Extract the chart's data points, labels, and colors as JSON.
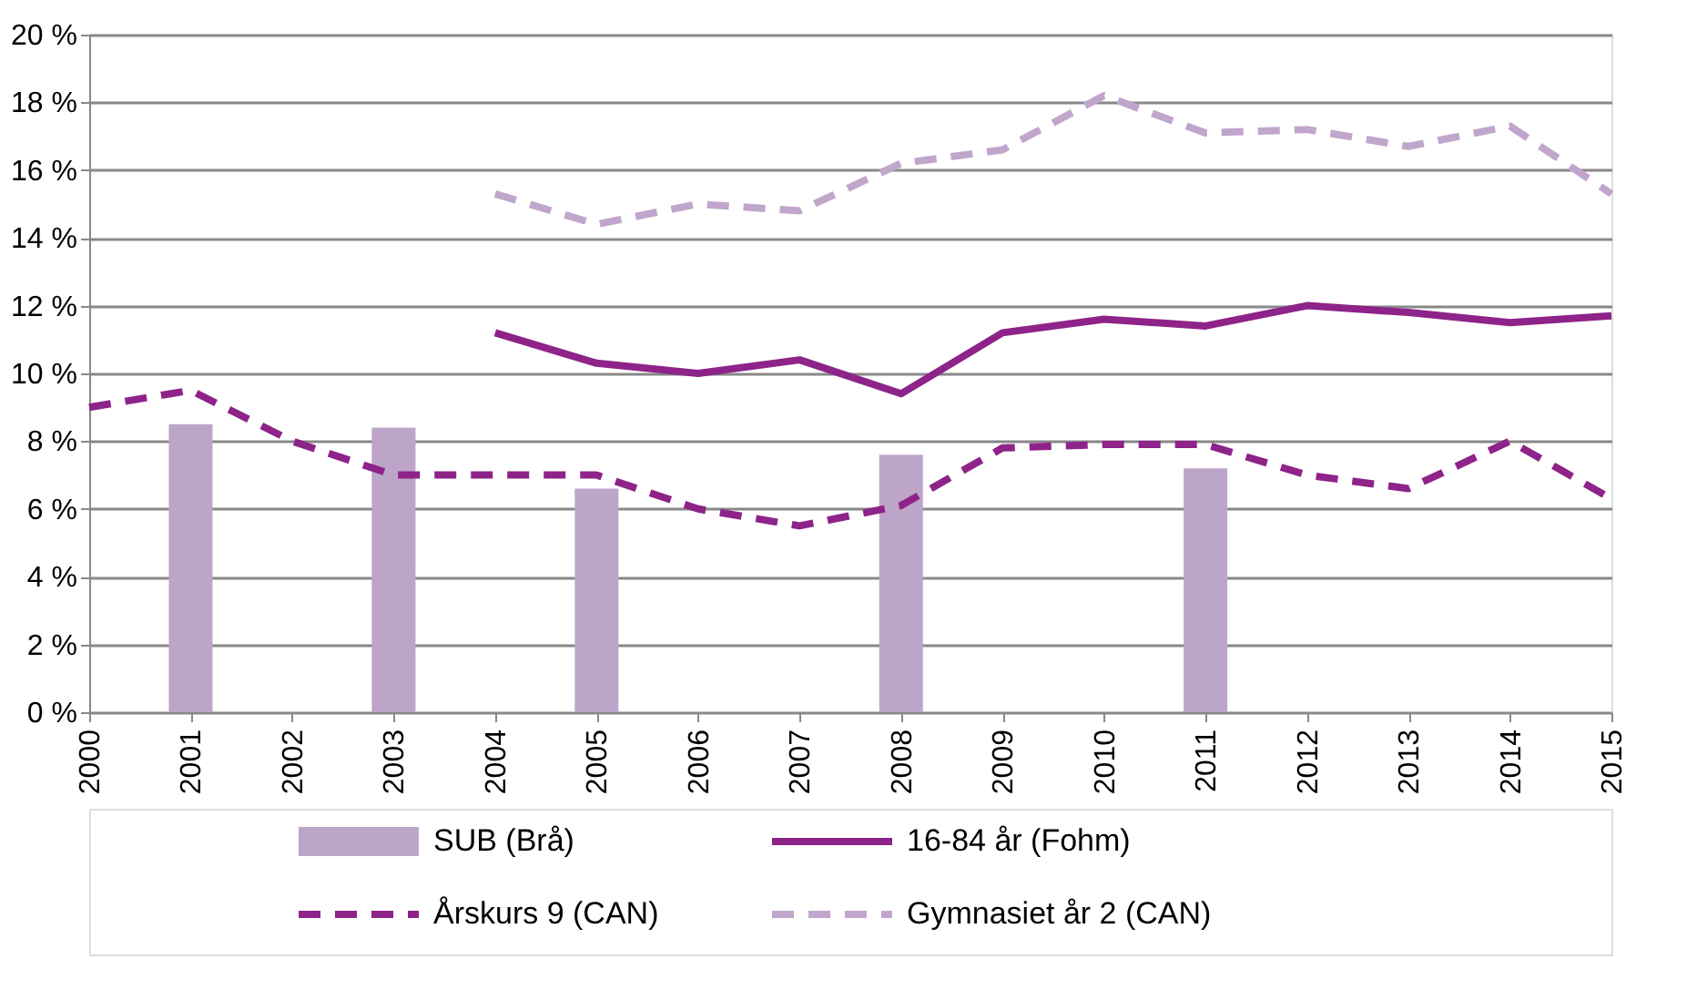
{
  "chart_data": {
    "type": "line",
    "categories": [
      "2000",
      "2001",
      "2002",
      "2003",
      "2004",
      "2005",
      "2006",
      "2007",
      "2008",
      "2009",
      "2010",
      "2011",
      "2012",
      "2013",
      "2014",
      "2015"
    ],
    "series": [
      {
        "name": "SUB (Brå)",
        "type": "bar",
        "color": "#bda5c9",
        "values": [
          null,
          8.5,
          null,
          8.4,
          null,
          6.6,
          null,
          null,
          7.6,
          null,
          null,
          7.2,
          null,
          null,
          null,
          null
        ]
      },
      {
        "name": "16-84 år (Fohm)",
        "line_style": "solid",
        "color": "#8e2389",
        "values": [
          null,
          null,
          null,
          null,
          11.2,
          10.3,
          10.0,
          10.4,
          9.4,
          11.2,
          11.6,
          11.4,
          12.0,
          11.8,
          11.5,
          11.7
        ]
      },
      {
        "name": "Årskurs 9 (CAN)",
        "line_style": "dashed",
        "color": "#8e2389",
        "values": [
          9.0,
          9.5,
          8.0,
          7.0,
          7.0,
          7.0,
          6.0,
          5.5,
          6.1,
          7.8,
          7.9,
          7.9,
          7.0,
          6.6,
          8.0,
          6.3
        ]
      },
      {
        "name": "Gymnasiet år 2 (CAN)",
        "line_style": "dashed",
        "color": "#c1a6cc",
        "values": [
          null,
          null,
          null,
          null,
          15.3,
          14.4,
          15.0,
          14.8,
          16.2,
          16.6,
          18.2,
          17.1,
          17.2,
          16.7,
          17.3,
          15.3
        ]
      }
    ],
    "ylim": [
      0,
      20
    ],
    "yticks": [
      {
        "value": 0,
        "label": "0 %"
      },
      {
        "value": 2,
        "label": "2 %"
      },
      {
        "value": 4,
        "label": "4 %"
      },
      {
        "value": 6,
        "label": "6 %"
      },
      {
        "value": 8,
        "label": "8 %"
      },
      {
        "value": 10,
        "label": "10 %"
      },
      {
        "value": 12,
        "label": "12 %"
      },
      {
        "value": 14,
        "label": "14 %"
      },
      {
        "value": 16,
        "label": "16 %"
      },
      {
        "value": 18,
        "label": "18 %"
      },
      {
        "value": 20,
        "label": "20 %"
      }
    ],
    "grid": "y",
    "legend": "bottom"
  }
}
